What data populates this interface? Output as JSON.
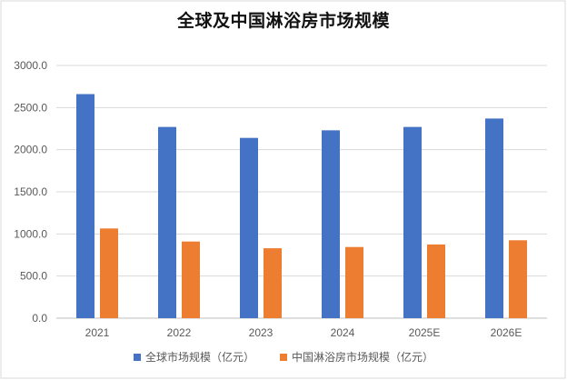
{
  "chart_data": {
    "type": "bar",
    "title": "全球及中国淋浴房市场规模",
    "xlabel": "",
    "ylabel": "",
    "categories": [
      "2021",
      "2022",
      "2023",
      "2024",
      "2025E",
      "2026E"
    ],
    "yticks": [
      "0.0",
      "500.0",
      "1000.0",
      "1500.0",
      "2000.0",
      "2500.0",
      "3000.0"
    ],
    "ylim": [
      0,
      3000
    ],
    "grid": "horizontal",
    "legend_position": "bottom",
    "series": [
      {
        "name": "全球市场规模（亿元）",
        "color": "#4472C4",
        "values": [
          2660,
          2270,
          2140,
          2230,
          2270,
          2370
        ]
      },
      {
        "name": "中国淋浴房市场规模（亿元）",
        "color": "#ED7D31",
        "values": [
          1065,
          910,
          830,
          845,
          875,
          925
        ]
      }
    ]
  }
}
